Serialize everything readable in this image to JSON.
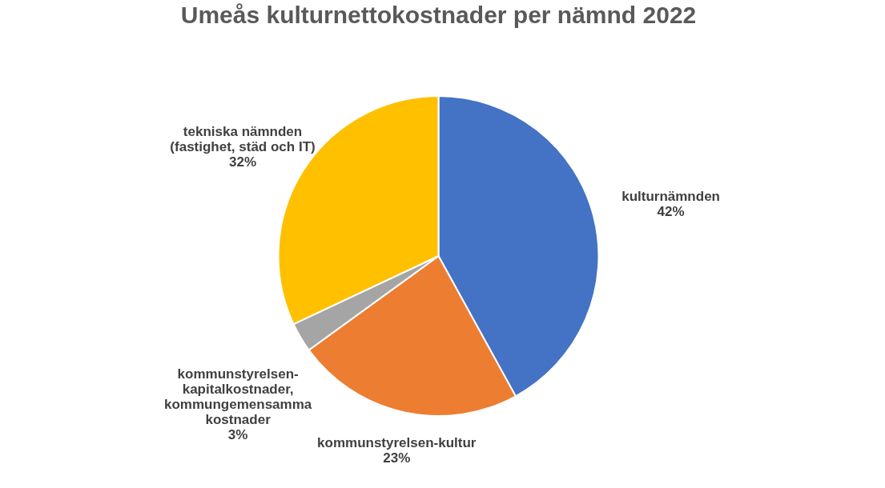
{
  "chart_data": {
    "type": "pie",
    "title": "Umeås kulturnettokostnader per nämnd 2022",
    "categories": [
      "kulturnämnden",
      "kommunstyrelsen-kultur",
      "kommunstyrelsen-kapitalkostnader, kommungemensamma kostnader",
      "tekniska nämnden (fastighet, städ och IT)"
    ],
    "values": [
      42,
      23,
      3,
      32
    ],
    "colors": [
      "#4472c4",
      "#ed7d31",
      "#a5a5a5",
      "#ffc000"
    ],
    "value_labels": [
      "42%",
      "23%",
      "3%",
      "32%"
    ]
  }
}
